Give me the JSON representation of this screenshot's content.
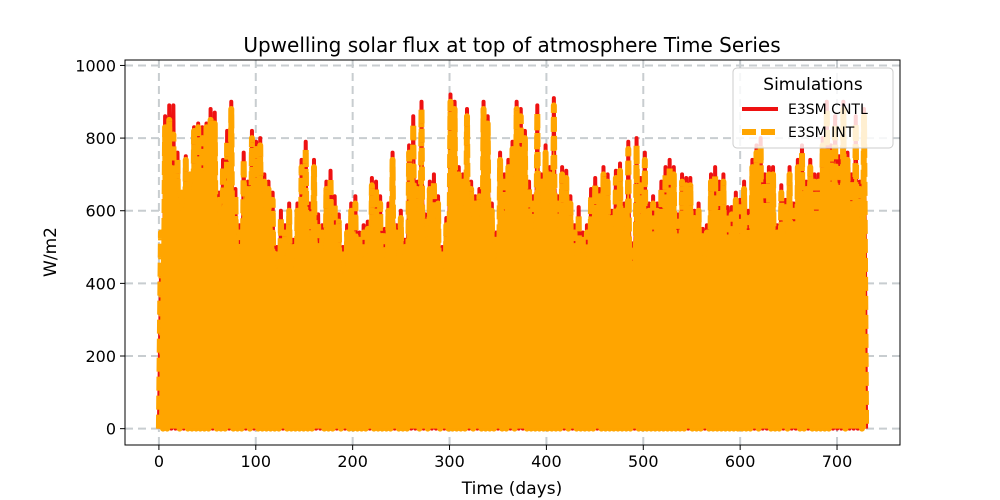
{
  "chart_data": {
    "type": "line",
    "title": "Upwelling solar flux at top of atmosphere Time Series",
    "xlabel": "Time (days)",
    "ylabel": "W/m2",
    "xlim": [
      -35,
      765
    ],
    "ylim": [
      -45,
      1015
    ],
    "xticks": [
      0,
      100,
      200,
      300,
      400,
      500,
      600,
      700
    ],
    "yticks": [
      0,
      200,
      400,
      600,
      800,
      1000
    ],
    "grid": true,
    "legend": {
      "title": "Simulations",
      "placement": "top-right"
    },
    "series": [
      {
        "name": "E3SM CNTL",
        "color": "#ee1111",
        "style": "solid",
        "x_range": [
          0,
          730
        ],
        "daily_peak": [
          420,
          860,
          890,
          890,
          760,
          650,
          750,
          700,
          830,
          840,
          830,
          840,
          880,
          870,
          650,
          740,
          820,
          900,
          660,
          560,
          760,
          680,
          820,
          790,
          800,
          700,
          680,
          650,
          500,
          600,
          560,
          620,
          520,
          620,
          740,
          790,
          620,
          740,
          590,
          560,
          680,
          710,
          640,
          590,
          500,
          560,
          620,
          640,
          540,
          560,
          570,
          690,
          680,
          640,
          550,
          620,
          760,
          560,
          600,
          520,
          780,
          860,
          680,
          900,
          590,
          680,
          700,
          640,
          500,
          580,
          920,
          900,
          720,
          700,
          880,
          680,
          640,
          660,
          900,
          860,
          620,
          540,
          760,
          700,
          740,
          790,
          900,
          880,
          820,
          680,
          640,
          890,
          700,
          780,
          720,
          910,
          640,
          720,
          710,
          640,
          560,
          610,
          540,
          560,
          660,
          690,
          660,
          720,
          700,
          600,
          710,
          730,
          620,
          790,
          510,
          800,
          690,
          760,
          620,
          640,
          620,
          680,
          720,
          740,
          720,
          590,
          700,
          690,
          690,
          600,
          620,
          550,
          560,
          700,
          720,
          680,
          700,
          610,
          610,
          650,
          630,
          680,
          600,
          740,
          780,
          800,
          700,
          720,
          720,
          560,
          670,
          630,
          720,
          620,
          740,
          780,
          680,
          740,
          700,
          700,
          800,
          900,
          780,
          860,
          750,
          900,
          760,
          700,
          860,
          680,
          880
        ],
        "trough_notes": "daily minima near 0 W/m2"
      },
      {
        "name": "E3SM INT",
        "color": "#ffa500",
        "style": "dashed",
        "x_range": [
          0,
          730
        ],
        "daily_peak": [
          540,
          830,
          850,
          810,
          740,
          650,
          740,
          700,
          820,
          830,
          800,
          830,
          850,
          840,
          630,
          720,
          790,
          880,
          640,
          540,
          740,
          660,
          800,
          770,
          780,
          680,
          660,
          630,
          480,
          580,
          540,
          600,
          500,
          600,
          720,
          770,
          600,
          720,
          570,
          540,
          660,
          690,
          620,
          570,
          480,
          540,
          600,
          620,
          520,
          540,
          550,
          670,
          660,
          620,
          530,
          600,
          740,
          540,
          580,
          500,
          760,
          840,
          660,
          880,
          570,
          660,
          680,
          620,
          480,
          560,
          900,
          880,
          700,
          680,
          860,
          660,
          620,
          640,
          880,
          840,
          600,
          520,
          740,
          680,
          720,
          770,
          880,
          860,
          800,
          660,
          620,
          870,
          680,
          760,
          700,
          890,
          620,
          700,
          690,
          620,
          540,
          590,
          520,
          540,
          640,
          670,
          640,
          700,
          680,
          580,
          690,
          710,
          600,
          770,
          490,
          780,
          670,
          740,
          600,
          620,
          600,
          660,
          700,
          720,
          700,
          570,
          680,
          670,
          670,
          580,
          600,
          530,
          540,
          680,
          700,
          660,
          680,
          590,
          590,
          630,
          610,
          660,
          580,
          720,
          760,
          780,
          680,
          700,
          700,
          540,
          650,
          610,
          700,
          600,
          720,
          760,
          660,
          720,
          680,
          680,
          780,
          880,
          760,
          840,
          730,
          880,
          740,
          680,
          840,
          660,
          860
        ],
        "trough_notes": "daily minima near 0 W/m2"
      }
    ]
  }
}
